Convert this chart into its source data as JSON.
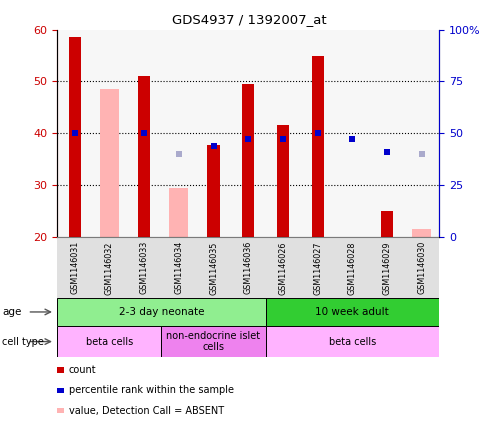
{
  "title": "GDS4937 / 1392007_at",
  "samples": [
    "GSM1146031",
    "GSM1146032",
    "GSM1146033",
    "GSM1146034",
    "GSM1146035",
    "GSM1146036",
    "GSM1146026",
    "GSM1146027",
    "GSM1146028",
    "GSM1146029",
    "GSM1146030"
  ],
  "red_values": [
    58.5,
    null,
    51.0,
    null,
    37.8,
    49.5,
    41.5,
    55.0,
    null,
    25.0,
    null
  ],
  "blue_pct": [
    50.0,
    null,
    50.0,
    null,
    44.0,
    47.0,
    47.0,
    50.0,
    47.0,
    41.0,
    null
  ],
  "pink_values": [
    null,
    48.5,
    null,
    29.5,
    null,
    null,
    null,
    null,
    null,
    null,
    21.5
  ],
  "lightblue_pct": [
    null,
    null,
    null,
    40.0,
    null,
    null,
    null,
    null,
    null,
    null,
    40.0
  ],
  "ylim_left": [
    20,
    60
  ],
  "ylim_right": [
    0,
    100
  ],
  "yticks_left": [
    20,
    30,
    40,
    50,
    60
  ],
  "yticks_right": [
    0,
    25,
    50,
    75,
    100
  ],
  "ytick_labels_right": [
    "0",
    "25",
    "50",
    "75",
    "100%"
  ],
  "age_groups": [
    {
      "label": "2-3 day neonate",
      "start": 0,
      "end": 6,
      "color": "#90EE90"
    },
    {
      "label": "10 week adult",
      "start": 6,
      "end": 11,
      "color": "#32CD32"
    }
  ],
  "cell_type_groups": [
    {
      "label": "beta cells",
      "start": 0,
      "end": 3,
      "color": "#FFB3FF"
    },
    {
      "label": "non-endocrine islet\ncells",
      "start": 3,
      "end": 6,
      "color": "#EE82EE"
    },
    {
      "label": "beta cells",
      "start": 6,
      "end": 11,
      "color": "#FFB3FF"
    }
  ],
  "bar_color_red": "#CC0000",
  "bar_color_blue": "#0000CC",
  "bar_color_pink": "#FFB3B3",
  "bar_color_lightblue": "#AAAACC",
  "dotted_yticks": [
    30,
    40,
    50
  ],
  "left_tick_color": "#CC0000",
  "right_tick_color": "#0000CC"
}
